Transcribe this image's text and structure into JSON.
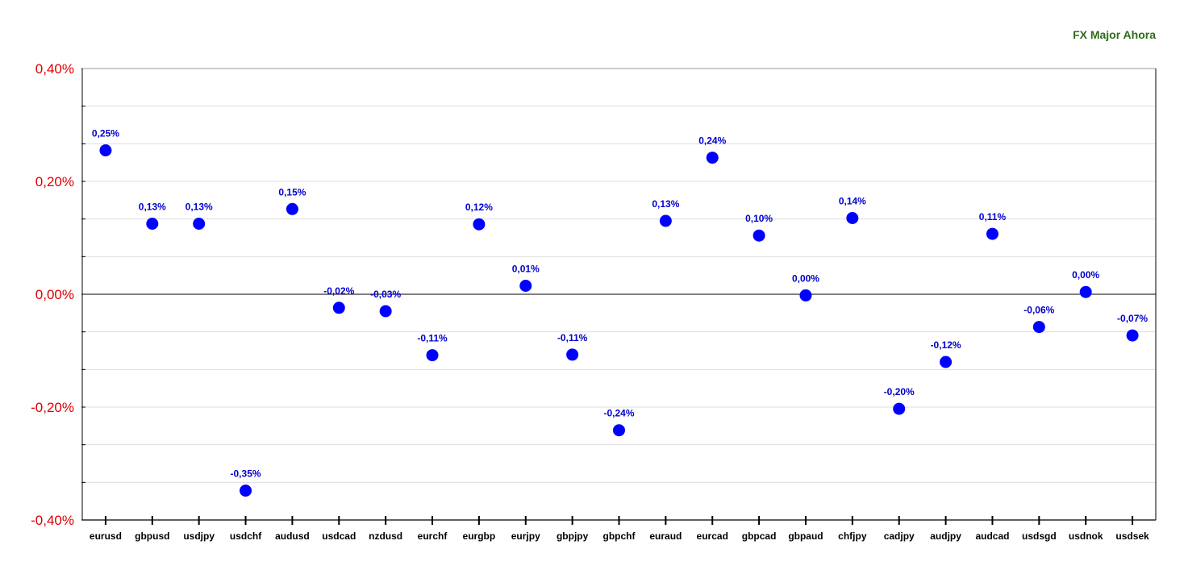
{
  "colors": {
    "point": "#0000ff",
    "data_label": "#0000cc",
    "y_tick_label": "#dd0000",
    "title": "#2e6b1a",
    "grid": "#dddddd",
    "zero_line": "#000000",
    "axis": "#000000"
  },
  "chart_data": {
    "type": "scatter",
    "title": "FX Major Ahora",
    "xlabel": "",
    "ylabel": "",
    "ylim": [
      -0.4,
      0.4
    ],
    "grid": true,
    "yticks": [
      0.4,
      0.2,
      0.0,
      -0.2,
      -0.4
    ],
    "ytick_labels": [
      "0,40%",
      "0,20%",
      "0,00%",
      "-0,20%",
      "-0,40%"
    ],
    "categories": [
      "eurusd",
      "gbpusd",
      "usdjpy",
      "usdchf",
      "audusd",
      "usdcad",
      "nzdusd",
      "eurchf",
      "eurgbp",
      "eurjpy",
      "gbpjpy",
      "gbpchf",
      "euraud",
      "eurcad",
      "gbpcad",
      "gbpaud",
      "chfjpy",
      "cadjpy",
      "audjpy",
      "audcad",
      "usdsgd",
      "usdnok",
      "usdsek"
    ],
    "values": [
      0.255,
      0.125,
      0.125,
      -0.348,
      0.151,
      -0.024,
      -0.03,
      -0.108,
      0.124,
      0.015,
      -0.107,
      -0.241,
      0.13,
      0.242,
      0.104,
      -0.002,
      0.135,
      -0.203,
      -0.12,
      0.107,
      -0.058,
      0.004,
      -0.073
    ],
    "data_labels": [
      "0,25%",
      "0,13%",
      "0,13%",
      "-0,35%",
      "0,15%",
      "-0,02%",
      "-0,03%",
      "-0,11%",
      "0,12%",
      "0,01%",
      "-0,11%",
      "-0,24%",
      "0,13%",
      "0,24%",
      "0,10%",
      "0,00%",
      "0,14%",
      "-0,20%",
      "-0,12%",
      "0,11%",
      "-0,06%",
      "0,00%",
      "-0,07%"
    ]
  }
}
